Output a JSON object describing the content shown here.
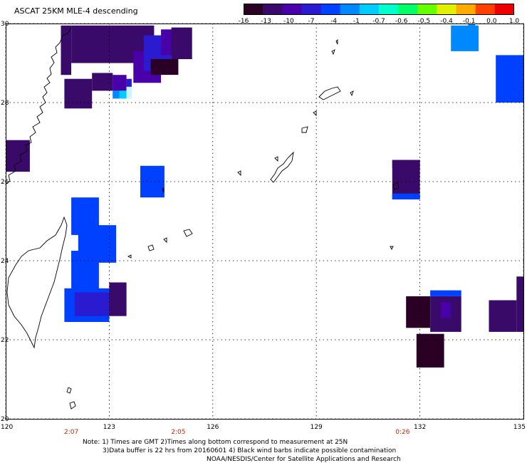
{
  "header": {
    "title": "ASCAT 25KM MLE-4 descending"
  },
  "colorbar": {
    "labels": [
      "-16",
      "-13",
      "-10",
      "-7",
      "-4",
      "-1",
      "-0.7",
      "-0.6",
      "-0.5",
      "-0.4",
      "-0.1",
      "0.0",
      "1.0"
    ],
    "colors": [
      "#2a0024",
      "#3a0a6a",
      "#4a00a8",
      "#2a1bd0",
      "#0040ff",
      "#0088ff",
      "#00ccff",
      "#00ffcc",
      "#00ff66",
      "#66ff00",
      "#e0f000",
      "#ffaa00",
      "#ff4000",
      "#ee0000"
    ]
  },
  "map": {
    "lon_range": [
      120,
      135
    ],
    "lat_range": [
      20,
      30
    ],
    "lat_ticks": [
      "30",
      "28",
      "26",
      "24",
      "22",
      "20"
    ],
    "lon_ticks": [
      "120",
      "123",
      "126",
      "129",
      "132",
      "135"
    ],
    "times": [
      "2:07",
      "2:05",
      "0:26"
    ],
    "time_color": "#cc2200",
    "cells": [
      {
        "lon0": 121.9,
        "lon1": 124.3,
        "lat0": 29.0,
        "lat1": 29.95,
        "color": "#3a0a6a"
      },
      {
        "lon0": 121.6,
        "lon1": 121.9,
        "lat0": 28.7,
        "lat1": 29.95,
        "color": "#3a0a6a"
      },
      {
        "lon0": 123.7,
        "lon1": 124.5,
        "lat0": 28.5,
        "lat1": 29.3,
        "color": "#4a00a8"
      },
      {
        "lon0": 124.0,
        "lon1": 124.8,
        "lat0": 28.8,
        "lat1": 29.7,
        "color": "#2a1bd0"
      },
      {
        "lon0": 124.5,
        "lon1": 125.0,
        "lat0": 29.2,
        "lat1": 29.85,
        "color": "#4a00a8"
      },
      {
        "lon0": 124.8,
        "lon1": 125.4,
        "lat0": 29.1,
        "lat1": 29.9,
        "color": "#3a0a6a"
      },
      {
        "lon0": 124.2,
        "lon1": 125.0,
        "lat0": 28.7,
        "lat1": 29.1,
        "color": "#2a0024"
      },
      {
        "lon0": 121.7,
        "lon1": 122.5,
        "lat0": 27.85,
        "lat1": 28.6,
        "color": "#3a0a6a"
      },
      {
        "lon0": 122.5,
        "lon1": 123.1,
        "lat0": 28.3,
        "lat1": 28.75,
        "color": "#3a0a6a"
      },
      {
        "lon0": 123.1,
        "lon1": 123.5,
        "lat0": 28.3,
        "lat1": 28.7,
        "color": "#4a00a8"
      },
      {
        "lon0": 123.1,
        "lon1": 123.3,
        "lat0": 28.1,
        "lat1": 28.3,
        "color": "#0088ff"
      },
      {
        "lon0": 123.3,
        "lon1": 123.5,
        "lat0": 28.1,
        "lat1": 28.3,
        "color": "#00ccff"
      },
      {
        "lon0": 123.5,
        "lon1": 123.65,
        "lat0": 28.1,
        "lat1": 28.4,
        "color": "#ccf4ff"
      },
      {
        "lon0": 123.5,
        "lon1": 123.65,
        "lat0": 28.4,
        "lat1": 28.6,
        "color": "#2a1bd0"
      },
      {
        "lon0": 120.0,
        "lon1": 120.7,
        "lat0": 26.25,
        "lat1": 27.05,
        "color": "#3a0a6a"
      },
      {
        "lon0": 123.9,
        "lon1": 124.6,
        "lat0": 25.6,
        "lat1": 26.4,
        "color": "#0040ff"
      },
      {
        "lon0": 121.9,
        "lon1": 122.7,
        "lat0": 24.65,
        "lat1": 25.6,
        "color": "#0040ff"
      },
      {
        "lon0": 122.1,
        "lon1": 123.2,
        "lat0": 23.95,
        "lat1": 24.9,
        "color": "#0040ff"
      },
      {
        "lon0": 121.9,
        "lon1": 122.3,
        "lat0": 23.95,
        "lat1": 24.25,
        "color": "#0040ff"
      },
      {
        "lon0": 121.9,
        "lon1": 122.7,
        "lat0": 23.2,
        "lat1": 24.25,
        "color": "#0040ff"
      },
      {
        "lon0": 121.7,
        "lon1": 123.0,
        "lat0": 22.45,
        "lat1": 23.3,
        "color": "#0040ff"
      },
      {
        "lon0": 122.0,
        "lon1": 123.0,
        "lat0": 22.6,
        "lat1": 23.2,
        "color": "#2a1bd0"
      },
      {
        "lon0": 123.0,
        "lon1": 123.5,
        "lat0": 22.6,
        "lat1": 23.45,
        "color": "#3a0a6a"
      },
      {
        "lon0": 132.9,
        "lon1": 133.7,
        "lat0": 29.3,
        "lat1": 29.95,
        "color": "#0088ff"
      },
      {
        "lon0": 133.4,
        "lon1": 133.6,
        "lat0": 29.85,
        "lat1": 30.0,
        "color": "#0088ff"
      },
      {
        "lon0": 134.2,
        "lon1": 135.0,
        "lat0": 28.0,
        "lat1": 29.2,
        "color": "#0040ff"
      },
      {
        "lon0": 131.2,
        "lon1": 132.0,
        "lat0": 25.55,
        "lat1": 26.55,
        "color": "#3a0a6a"
      },
      {
        "lon0": 131.2,
        "lon1": 132.0,
        "lat0": 25.55,
        "lat1": 25.7,
        "color": "#0040ff"
      },
      {
        "lon0": 131.2,
        "lon1": 132.0,
        "lat0": 26.35,
        "lat1": 26.55,
        "color": "#3a0a6a"
      },
      {
        "lon0": 131.6,
        "lon1": 132.3,
        "lat0": 22.3,
        "lat1": 23.1,
        "color": "#2a0024"
      },
      {
        "lon0": 132.3,
        "lon1": 133.2,
        "lat0": 22.2,
        "lat1": 23.1,
        "color": "#3a0a6a"
      },
      {
        "lon0": 132.3,
        "lon1": 133.2,
        "lat0": 23.1,
        "lat1": 23.25,
        "color": "#0040ff"
      },
      {
        "lon0": 132.6,
        "lon1": 132.9,
        "lat0": 22.55,
        "lat1": 22.95,
        "color": "#4a00a8"
      },
      {
        "lon0": 131.9,
        "lon1": 132.7,
        "lat0": 21.3,
        "lat1": 22.15,
        "color": "#2a0024"
      },
      {
        "lon0": 134.0,
        "lon1": 134.8,
        "lat0": 22.2,
        "lat1": 23.0,
        "color": "#3a0a6a"
      },
      {
        "lon0": 134.8,
        "lon1": 135.0,
        "lat0": 22.2,
        "lat1": 23.6,
        "color": "#3a0a6a"
      }
    ]
  },
  "notes": {
    "line1": "Note: 1) Times are GMT 2)Times along bottom correspond to measurement at 25N",
    "line2": "3)Data buffer is 22 hrs from 20160601 4) Black wind barbs indicate possible contamination",
    "line3": "NOAA/NESDIS/Center for Satellite Applications and Research"
  }
}
